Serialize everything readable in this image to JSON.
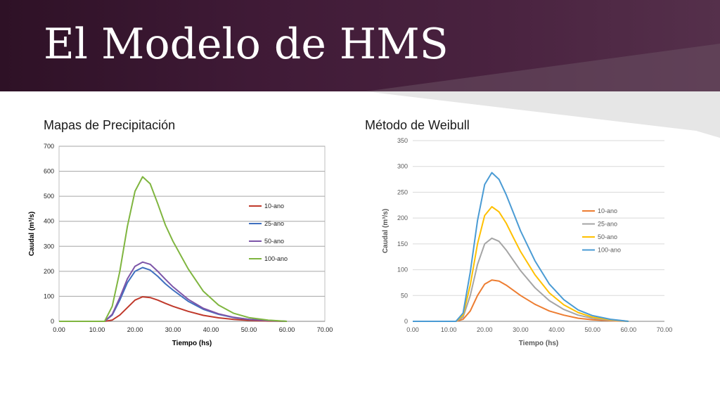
{
  "slide": {
    "title": "El Modelo de HMS",
    "colors": {
      "banner": "#3f1a36",
      "title_text": "#ffffff"
    }
  },
  "chart_data": [
    {
      "type": "line",
      "title": "Mapas de Precipitación",
      "xlabel": "Tiempo (hs)",
      "ylabel": "Caudal (m³/s)",
      "xlim": [
        0,
        70
      ],
      "ylim": [
        0,
        700
      ],
      "xticks": [
        "0.00",
        "10.00",
        "20.00",
        "30.00",
        "40.00",
        "50.00",
        "60.00",
        "70.00"
      ],
      "yticks": [
        "0",
        "100",
        "200",
        "300",
        "400",
        "500",
        "600",
        "700"
      ],
      "grid": "horizontal",
      "legend_position": "right",
      "x": [
        0,
        10,
        12,
        14,
        16,
        18,
        20,
        22,
        24,
        26,
        28,
        30,
        34,
        38,
        42,
        46,
        50,
        55,
        60
      ],
      "series": [
        {
          "name": "10-ano",
          "color": "#c0392b",
          "values": [
            0,
            0,
            0,
            5,
            25,
            55,
            85,
            98,
            95,
            85,
            72,
            60,
            40,
            24,
            14,
            8,
            4,
            1,
            0
          ]
        },
        {
          "name": "25-ano",
          "color": "#3f6fbf",
          "values": [
            0,
            0,
            0,
            25,
            85,
            155,
            200,
            215,
            205,
            180,
            150,
            125,
            80,
            48,
            28,
            15,
            8,
            3,
            0
          ]
        },
        {
          "name": "50-ano",
          "color": "#7d55a8",
          "values": [
            0,
            0,
            0,
            28,
            95,
            170,
            220,
            237,
            228,
            200,
            168,
            138,
            88,
            52,
            30,
            16,
            8,
            3,
            0
          ]
        },
        {
          "name": "100-ano",
          "color": "#7fb53f",
          "values": [
            0,
            0,
            0,
            60,
            200,
            380,
            520,
            578,
            550,
            470,
            385,
            320,
            210,
            120,
            65,
            32,
            15,
            5,
            0
          ]
        }
      ]
    },
    {
      "type": "line",
      "title": "Método de Weibull",
      "xlabel": "Tiempo (hs)",
      "ylabel": "Caudal (m³/s)",
      "xlim": [
        0,
        70
      ],
      "ylim": [
        0,
        350
      ],
      "xticks": [
        "0.00",
        "10.00",
        "20.00",
        "30.00",
        "40.00",
        "50.00",
        "60.00",
        "70.00"
      ],
      "yticks": [
        "0",
        "50",
        "100",
        "150",
        "200",
        "250",
        "300",
        "350"
      ],
      "grid": "horizontal",
      "legend_position": "right",
      "x": [
        0,
        10,
        12,
        14,
        16,
        18,
        20,
        22,
        24,
        26,
        28,
        30,
        34,
        38,
        42,
        46,
        50,
        55,
        60
      ],
      "series": [
        {
          "name": "10-ano",
          "color": "#ed7d31",
          "values": [
            0,
            0,
            0,
            4,
            20,
            50,
            72,
            80,
            78,
            70,
            60,
            50,
            33,
            20,
            12,
            6,
            3,
            1,
            0
          ]
        },
        {
          "name": "25-ano",
          "color": "#a5a5a5",
          "values": [
            0,
            0,
            0,
            8,
            50,
            110,
            150,
            161,
            155,
            138,
            118,
            98,
            65,
            40,
            23,
            12,
            6,
            2,
            0
          ]
        },
        {
          "name": "50-ano",
          "color": "#ffc000",
          "values": [
            0,
            0,
            0,
            12,
            70,
            150,
            205,
            222,
            212,
            190,
            162,
            135,
            90,
            55,
            32,
            17,
            8,
            3,
            0
          ]
        },
        {
          "name": "100-ano",
          "color": "#4a9bd4",
          "values": [
            0,
            0,
            0,
            16,
            95,
            195,
            265,
            288,
            275,
            245,
            210,
            175,
            117,
            72,
            42,
            22,
            11,
            4,
            0
          ]
        }
      ]
    }
  ]
}
